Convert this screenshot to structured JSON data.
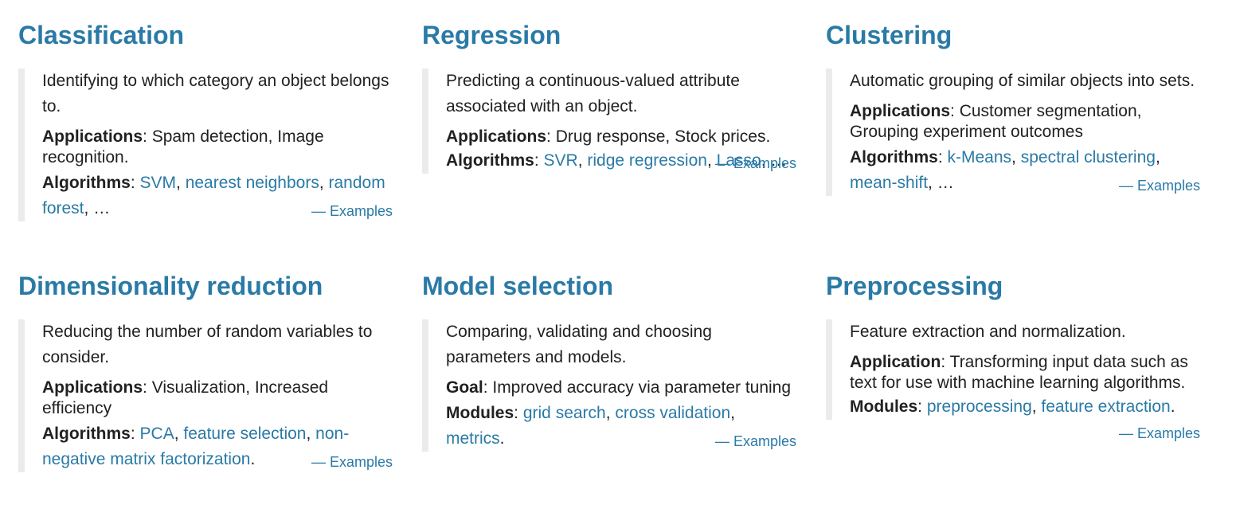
{
  "cards": [
    {
      "title": "Classification",
      "description": "Identifying to which category an object belongs to.",
      "detail1": {
        "label": "Applications",
        "sep": ": ",
        "text": "Spam detection, Image recognition."
      },
      "detail2": {
        "label": "Algorithms",
        "sep": ": ",
        "links": [
          "SVM",
          "nearest neighbors",
          "random forest"
        ],
        "tail": ", …"
      },
      "examples": "— Examples"
    },
    {
      "title": "Regression",
      "description": "Predicting a continuous-valued attribute associated with an object.",
      "detail1": {
        "label": "Applications",
        "sep": ": ",
        "text": "Drug response, Stock prices."
      },
      "detail2": {
        "label": "Algorithms",
        "sep": ": ",
        "links": [
          "SVR",
          "ridge regression",
          "Lasso"
        ],
        "tail": ", …"
      },
      "examples": "— Examples"
    },
    {
      "title": "Clustering",
      "description": "Automatic grouping of similar objects into sets.",
      "detail1": {
        "label": "Applications",
        "sep": ": ",
        "text": "Customer segmentation, Grouping experiment outcomes"
      },
      "detail2": {
        "label": "Algorithms",
        "sep": ": ",
        "links": [
          "k-Means",
          "spectral clustering",
          "mean-shift"
        ],
        "tail": ", …"
      },
      "examples": "— Examples"
    },
    {
      "title": "Dimensionality reduction",
      "description": "Reducing the number of random variables to consider.",
      "detail1": {
        "label": "Applications",
        "sep": ": ",
        "text": "Visualization, Increased efficiency"
      },
      "detail2": {
        "label": "Algorithms",
        "sep": ": ",
        "links": [
          "PCA",
          "feature selection",
          "non-negative matrix factorization"
        ],
        "tail": "."
      },
      "examples": "— Examples"
    },
    {
      "title": "Model selection",
      "description": "Comparing, validating and choosing parameters and models.",
      "detail1": {
        "label": "Goal",
        "sep": ": ",
        "text": "Improved accuracy via parameter tuning"
      },
      "detail2": {
        "label": "Modules",
        "sep": ": ",
        "links": [
          "grid search",
          "cross validation",
          "metrics"
        ],
        "tail": "."
      },
      "examples": "— Examples"
    },
    {
      "title": "Preprocessing",
      "description": "Feature extraction and normalization.",
      "detail1": {
        "label": "Application",
        "sep": ": ",
        "text": "Transforming input data such as text for use with machine learning algorithms."
      },
      "detail2": {
        "label": "Modules",
        "sep": ": ",
        "links": [
          "preprocessing",
          "feature extraction"
        ],
        "tail": "."
      },
      "examples": "— Examples"
    }
  ],
  "colors": {
    "accent": "#2a7aa6",
    "text": "#212121",
    "border": "#ebebeb"
  }
}
